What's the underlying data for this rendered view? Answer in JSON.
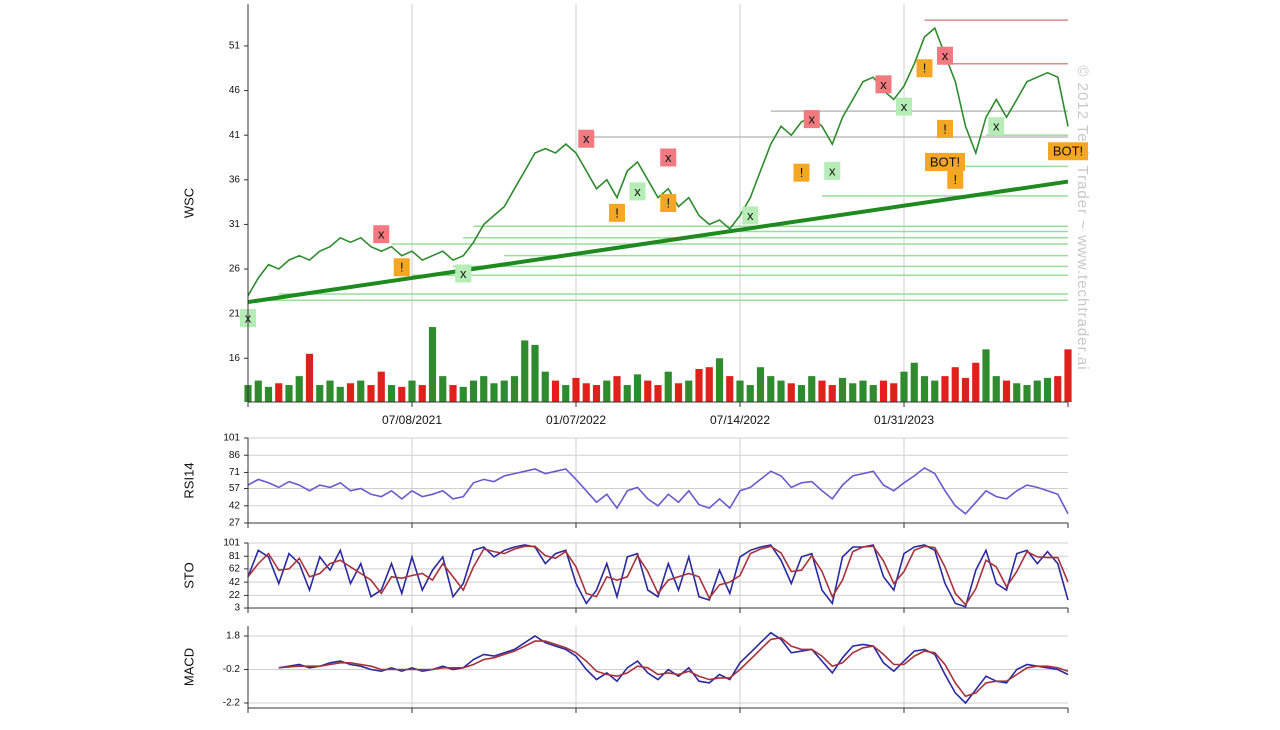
{
  "watermark": "© 2012 Tech Trader ~ www.techtrader.ai",
  "chart_data": [
    {
      "type": "line",
      "y_label": "WSC",
      "categories": [
        null,
        null,
        null,
        null,
        null,
        null,
        null,
        null,
        null,
        null,
        null,
        null,
        null,
        null,
        null,
        null,
        "07/08/2021",
        null,
        null,
        null,
        null,
        null,
        null,
        null,
        null,
        null,
        null,
        null,
        null,
        null,
        null,
        null,
        "01/07/2022",
        null,
        null,
        null,
        null,
        null,
        null,
        null,
        null,
        null,
        null,
        null,
        null,
        null,
        null,
        null,
        "07/14/2022",
        null,
        null,
        null,
        null,
        null,
        null,
        null,
        null,
        null,
        null,
        null,
        null,
        null,
        null,
        null,
        "01/31/2023",
        null,
        null,
        null,
        null,
        null,
        null,
        null,
        null,
        null,
        null,
        null,
        null,
        null,
        null,
        null,
        null
      ],
      "ylim": [
        11.1,
        55.7
      ],
      "yticks": [
        16,
        21,
        26,
        31,
        36,
        41,
        46,
        51
      ],
      "series": [
        {
          "color": "#2e8b2e",
          "values": [
            23,
            25,
            26.5,
            26,
            27,
            27.5,
            27,
            28,
            28.5,
            29.5,
            29,
            29.5,
            28.5,
            28,
            28.5,
            27.5,
            28,
            27,
            27.5,
            28,
            27,
            27.5,
            29,
            31,
            32,
            33,
            35,
            37,
            39,
            39.5,
            39,
            40,
            39,
            37,
            35,
            36,
            34,
            37,
            38,
            36,
            34,
            35,
            33,
            34,
            32,
            31,
            31.5,
            30.5,
            32,
            34,
            37,
            40,
            42,
            41,
            42.5,
            43,
            42,
            40,
            43,
            45,
            47,
            47.5,
            46,
            45,
            46.5,
            49,
            52,
            53,
            50,
            47,
            42,
            39,
            43,
            45,
            43,
            45,
            47,
            47.5,
            48,
            47.5,
            42
          ]
        }
      ],
      "volume": [
        13,
        13.5,
        12.8,
        13.2,
        13,
        14,
        16.5,
        13,
        13.5,
        12.8,
        13.2,
        13.5,
        13,
        14.5,
        13,
        12.8,
        13.5,
        13,
        19.5,
        14,
        13,
        12.8,
        13.5,
        14,
        13.2,
        13.5,
        14,
        18,
        17.5,
        14.5,
        13.5,
        13,
        13.8,
        13.2,
        13,
        13.5,
        14,
        13,
        14.2,
        13.5,
        13,
        14.5,
        13.2,
        13.5,
        14.8,
        15,
        16,
        14,
        13.5,
        13,
        15,
        14,
        13.5,
        13.2,
        13,
        14,
        13.5,
        13,
        13.8,
        13.2,
        13.5,
        13,
        13.5,
        13.2,
        14.5,
        15.5,
        14,
        13.5,
        14,
        15,
        13.8,
        15.5,
        17,
        14,
        13.5,
        13.2,
        13,
        13.5,
        13.8,
        14,
        17
      ],
      "volume_up_color": "#2e8b2e",
      "volume_down_color": "#e0201a",
      "trendline": {
        "from": 22.3,
        "to": 35.8,
        "color": "#1f8a1f"
      },
      "levels": [
        {
          "value": 22.5,
          "start": 2,
          "color": "#9bdc9b"
        },
        {
          "value": 23.2,
          "start": 3,
          "color": "#9bdc9b"
        },
        {
          "value": 25.3,
          "start": 16,
          "color": "#9bdc9b"
        },
        {
          "value": 26.3,
          "start": 20,
          "color": "#9bdc9b"
        },
        {
          "value": 27.5,
          "start": 25,
          "color": "#9bdc9b"
        },
        {
          "value": 28.8,
          "start": 14,
          "color": "#9bdc9b"
        },
        {
          "value": 29.5,
          "start": 21,
          "color": "#9bdc9b"
        },
        {
          "value": 30.2,
          "start": 48,
          "color": "#9bdc9b"
        },
        {
          "value": 30.8,
          "start": 22,
          "color": "#9bdc9b"
        },
        {
          "value": 34.2,
          "start": 56,
          "color": "#9bdc9b"
        },
        {
          "value": 37.5,
          "start": 69,
          "color": "#9bdc9b"
        },
        {
          "value": 41,
          "start": 72,
          "color": "#9bdc9b"
        },
        {
          "value": 40.8,
          "start": 33,
          "color": "#bdbdbd"
        },
        {
          "value": 43.7,
          "start": 51,
          "color": "#bdbdbd"
        },
        {
          "value": 49,
          "start": 68,
          "color": "#d98c8c"
        },
        {
          "value": 53.9,
          "start": 66,
          "color": "#d98c8c"
        }
      ],
      "annotations": [
        {
          "text": "x",
          "point": 0,
          "value": 20.5,
          "color": "#b6ecb6"
        },
        {
          "text": "x",
          "point": 13,
          "value": 29.9,
          "color": "#f07a80"
        },
        {
          "text": "!",
          "point": 15,
          "value": 26.2,
          "color": "#f5a623"
        },
        {
          "text": "x",
          "point": 21,
          "value": 25.5,
          "color": "#b6ecb6"
        },
        {
          "text": "x",
          "point": 33,
          "value": 40.6,
          "color": "#f07a80"
        },
        {
          "text": "!",
          "point": 36,
          "value": 32.3,
          "color": "#f5a623"
        },
        {
          "text": "x",
          "point": 38,
          "value": 34.7,
          "color": "#b6ecb6"
        },
        {
          "text": "x",
          "point": 41,
          "value": 38.5,
          "color": "#f07a80"
        },
        {
          "text": "!",
          "point": 41,
          "value": 33.4,
          "color": "#f5a623"
        },
        {
          "text": "x",
          "point": 49,
          "value": 32,
          "color": "#b6ecb6"
        },
        {
          "text": "!",
          "point": 54,
          "value": 36.8,
          "color": "#f5a623"
        },
        {
          "text": "x",
          "point": 55,
          "value": 42.8,
          "color": "#f07a80"
        },
        {
          "text": "x",
          "point": 57,
          "value": 37,
          "color": "#b6ecb6"
        },
        {
          "text": "x",
          "point": 62,
          "value": 46.7,
          "color": "#f07a80"
        },
        {
          "text": "x",
          "point": 64,
          "value": 44.2,
          "color": "#b6ecb6"
        },
        {
          "text": "!",
          "point": 66,
          "value": 48.5,
          "color": "#f5a623"
        },
        {
          "text": "x",
          "point": 68,
          "value": 49.9,
          "color": "#f07a80"
        },
        {
          "text": "!",
          "point": 68,
          "value": 41.7,
          "color": "#f5a623"
        },
        {
          "text": "BOT!",
          "point": 68,
          "value": 38,
          "color": "#f5a623"
        },
        {
          "text": "!",
          "point": 69,
          "value": 36,
          "color": "#f5a623"
        },
        {
          "text": "x",
          "point": 73,
          "value": 42,
          "color": "#b6ecb6"
        },
        {
          "text": "BOT!",
          "point": 80,
          "value": 39.2,
          "color": "#f5a623"
        }
      ]
    },
    {
      "type": "line",
      "y_label": "RSI14",
      "ylim": [
        27,
        101
      ],
      "yticks": [
        27,
        42,
        57,
        71,
        86,
        101
      ],
      "grid": true,
      "series": [
        {
          "color": "#6a5acd",
          "values": [
            60,
            65,
            62,
            58,
            63,
            60,
            55,
            60,
            58,
            62,
            55,
            57,
            52,
            50,
            55,
            48,
            55,
            50,
            52,
            55,
            48,
            50,
            62,
            65,
            63,
            68,
            70,
            72,
            74,
            70,
            72,
            74,
            65,
            55,
            45,
            52,
            40,
            55,
            58,
            48,
            42,
            52,
            45,
            55,
            43,
            40,
            48,
            40,
            55,
            58,
            65,
            72,
            68,
            58,
            62,
            63,
            55,
            48,
            60,
            68,
            70,
            72,
            60,
            55,
            62,
            68,
            75,
            70,
            55,
            42,
            35,
            45,
            55,
            50,
            48,
            55,
            60,
            58,
            55,
            52,
            35
          ]
        }
      ]
    },
    {
      "type": "line",
      "y_label": "STO",
      "ylim": [
        3,
        101
      ],
      "yticks": [
        3,
        22,
        42,
        62,
        81,
        101
      ],
      "grid": true,
      "series": [
        {
          "color": "#2a2aa0",
          "values": [
            50,
            90,
            80,
            40,
            85,
            70,
            30,
            80,
            60,
            90,
            40,
            70,
            20,
            30,
            70,
            25,
            80,
            30,
            60,
            80,
            20,
            40,
            90,
            95,
            80,
            90,
            95,
            98,
            95,
            70,
            85,
            90,
            40,
            10,
            30,
            70,
            20,
            80,
            85,
            30,
            20,
            70,
            30,
            80,
            20,
            15,
            60,
            25,
            80,
            90,
            95,
            98,
            75,
            40,
            80,
            85,
            30,
            10,
            80,
            95,
            95,
            98,
            50,
            30,
            85,
            95,
            98,
            90,
            40,
            10,
            5,
            60,
            90,
            40,
            30,
            85,
            90,
            70,
            88,
            70,
            15
          ]
        },
        {
          "color": "#a8323c",
          "values": [
            50,
            70,
            85,
            60,
            62,
            78,
            50,
            55,
            70,
            75,
            65,
            55,
            45,
            25,
            50,
            48,
            52,
            55,
            45,
            70,
            50,
            30,
            65,
            92,
            88,
            85,
            92,
            96,
            96,
            82,
            78,
            88,
            65,
            25,
            20,
            50,
            45,
            50,
            82,
            58,
            25,
            45,
            50,
            55,
            50,
            18,
            38,
            42,
            52,
            85,
            92,
            96,
            86,
            58,
            60,
            82,
            58,
            20,
            45,
            88,
            95,
            96,
            74,
            40,
            58,
            90,
            96,
            94,
            65,
            25,
            8,
            32,
            75,
            65,
            35,
            58,
            88,
            80,
            79,
            79,
            42
          ]
        }
      ]
    },
    {
      "type": "line",
      "y_label": "MACD",
      "ylim": [
        -2.5,
        2.4
      ],
      "yticks": [
        -2.2,
        -0.2,
        1.8
      ],
      "grid": true,
      "series": [
        {
          "color": "#2a2aa0",
          "values": [
            null,
            null,
            null,
            -0.1,
            0,
            0.1,
            -0.1,
            0,
            0.2,
            0.3,
            0.1,
            0,
            -0.2,
            -0.3,
            -0.1,
            -0.3,
            -0.1,
            -0.3,
            -0.2,
            0,
            -0.2,
            -0.1,
            0.4,
            0.7,
            0.6,
            0.8,
            1.0,
            1.4,
            1.8,
            1.4,
            1.2,
            1.0,
            0.6,
            -0.2,
            -0.8,
            -0.4,
            -0.9,
            -0.1,
            0.3,
            -0.4,
            -0.8,
            -0.2,
            -0.6,
            -0.1,
            -0.9,
            -1.0,
            -0.5,
            -0.8,
            0.2,
            0.8,
            1.4,
            2.0,
            1.6,
            0.8,
            0.9,
            1.0,
            0.3,
            -0.4,
            0.5,
            1.2,
            1.3,
            1.2,
            0.2,
            -0.3,
            0.3,
            0.9,
            1.0,
            0.7,
            -0.5,
            -1.6,
            -2.2,
            -1.4,
            -0.6,
            -0.9,
            -1.0,
            -0.2,
            0.1,
            0,
            -0.1,
            -0.2,
            -0.5
          ]
        },
        {
          "color": "#a8323c",
          "values": [
            null,
            null,
            null,
            -0.1,
            -0.05,
            0,
            0,
            0,
            0.1,
            0.2,
            0.2,
            0.1,
            0,
            -0.2,
            -0.2,
            -0.2,
            -0.2,
            -0.2,
            -0.2,
            -0.1,
            -0.1,
            -0.1,
            0.1,
            0.4,
            0.5,
            0.7,
            0.9,
            1.2,
            1.5,
            1.5,
            1.3,
            1.1,
            0.8,
            0.3,
            -0.3,
            -0.5,
            -0.6,
            -0.4,
            0,
            -0.1,
            -0.5,
            -0.4,
            -0.5,
            -0.3,
            -0.6,
            -0.8,
            -0.7,
            -0.7,
            -0.2,
            0.4,
            1.0,
            1.6,
            1.7,
            1.2,
            1.0,
            1.0,
            0.6,
            0,
            0.2,
            0.8,
            1.1,
            1.2,
            0.7,
            0.1,
            0.1,
            0.6,
            0.9,
            0.8,
            0.1,
            -1.0,
            -1.8,
            -1.6,
            -1.0,
            -0.9,
            -0.9,
            -0.5,
            -0.1,
            0,
            0,
            -0.1,
            -0.3
          ]
        }
      ]
    }
  ]
}
